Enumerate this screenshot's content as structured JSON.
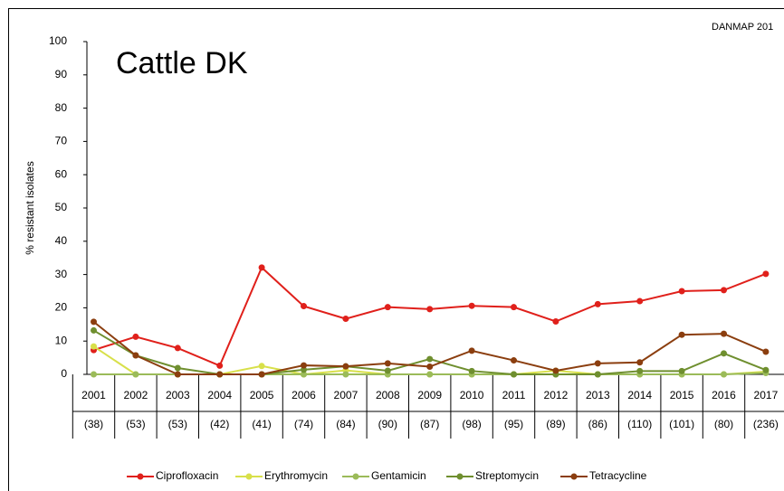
{
  "chart_data": {
    "type": "line",
    "title": "Cattle DK",
    "note": "DANMAP 201",
    "y_label": "% resistant isolates",
    "categories": [
      "2001",
      "2002",
      "2003",
      "2004",
      "2005",
      "2006",
      "2007",
      "2008",
      "2009",
      "2010",
      "2011",
      "2012",
      "2013",
      "2014",
      "2015",
      "2016",
      "2017"
    ],
    "sample_sizes": [
      "(38)",
      "(53)",
      "(53)",
      "(42)",
      "(41)",
      "(74)",
      "(84)",
      "(90)",
      "(87)",
      "(98)",
      "(95)",
      "(89)",
      "(86)",
      "(110)",
      "(101)",
      "(80)",
      "(236)"
    ],
    "series": [
      {
        "name": "Ciprofloxacin",
        "color": "#e0201b",
        "values": [
          7.3,
          11.3,
          7.9,
          2.6,
          32.1,
          20.5,
          16.7,
          20.2,
          19.6,
          20.6,
          20.2,
          15.9,
          21.1,
          22,
          25,
          25.3,
          30.2
        ]
      },
      {
        "name": "Erythromycin",
        "color": "#d8e04a",
        "values": [
          8.4,
          0,
          0,
          0,
          2.5,
          0,
          1.2,
          0,
          0,
          0,
          0,
          1.1,
          0,
          0,
          0,
          0,
          0.8
        ]
      },
      {
        "name": "Gentamicin",
        "color": "#9bbb59",
        "values": [
          0,
          0,
          0,
          0,
          0,
          0,
          0,
          0,
          0,
          0,
          0,
          0,
          0,
          0,
          0,
          0,
          0.4
        ]
      },
      {
        "name": "Streptomycin",
        "color": "#6f8f2f",
        "values": [
          13.2,
          5.7,
          1.9,
          0,
          0,
          1.4,
          2.4,
          1.1,
          4.6,
          1,
          0,
          0,
          0,
          1,
          1,
          6.3,
          1.3
        ]
      },
      {
        "name": "Tetracycline",
        "color": "#8b3e0f",
        "values": [
          15.8,
          5.7,
          0,
          0,
          0,
          2.7,
          2.4,
          3.3,
          2.3,
          7.1,
          4.2,
          1.1,
          3.3,
          3.6,
          11.9,
          12.2,
          6.8
        ]
      }
    ],
    "ylim": [
      0,
      100
    ],
    "yticks": [
      0,
      10,
      20,
      30,
      40,
      50,
      60,
      70,
      80,
      90,
      100
    ]
  }
}
